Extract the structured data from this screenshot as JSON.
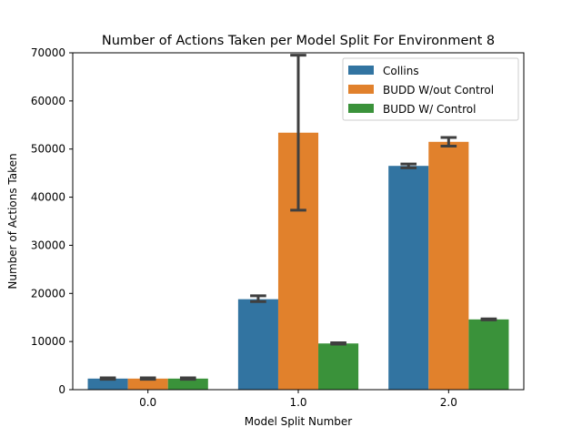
{
  "chart_data": {
    "type": "bar",
    "title": "Number of Actions Taken per Model Split For Environment 8",
    "xlabel": "Model Split Number",
    "ylabel": "Number of Actions Taken",
    "categories": [
      "0.0",
      "1.0",
      "2.0"
    ],
    "ylim": [
      0,
      70000
    ],
    "yticks": [
      0,
      10000,
      20000,
      30000,
      40000,
      50000,
      60000,
      70000
    ],
    "grid": false,
    "legend_position": "top-right",
    "series": [
      {
        "name": "Collins",
        "color": "#3274a1",
        "values": [
          2300,
          18800,
          46500
        ],
        "error": [
          [
            2150,
            2450
          ],
          [
            18300,
            19500
          ],
          [
            46100,
            46900
          ]
        ]
      },
      {
        "name": "BUDD W/out Control",
        "color": "#e1812c",
        "values": [
          2300,
          53400,
          51500
        ],
        "error": [
          [
            2150,
            2450
          ],
          [
            37300,
            69500
          ],
          [
            50600,
            52400
          ]
        ]
      },
      {
        "name": "BUDD W/ Control",
        "color": "#3a923a",
        "values": [
          2300,
          9600,
          14600
        ],
        "error": [
          [
            2150,
            2450
          ],
          [
            9450,
            9750
          ],
          [
            14500,
            14700
          ]
        ]
      }
    ]
  }
}
